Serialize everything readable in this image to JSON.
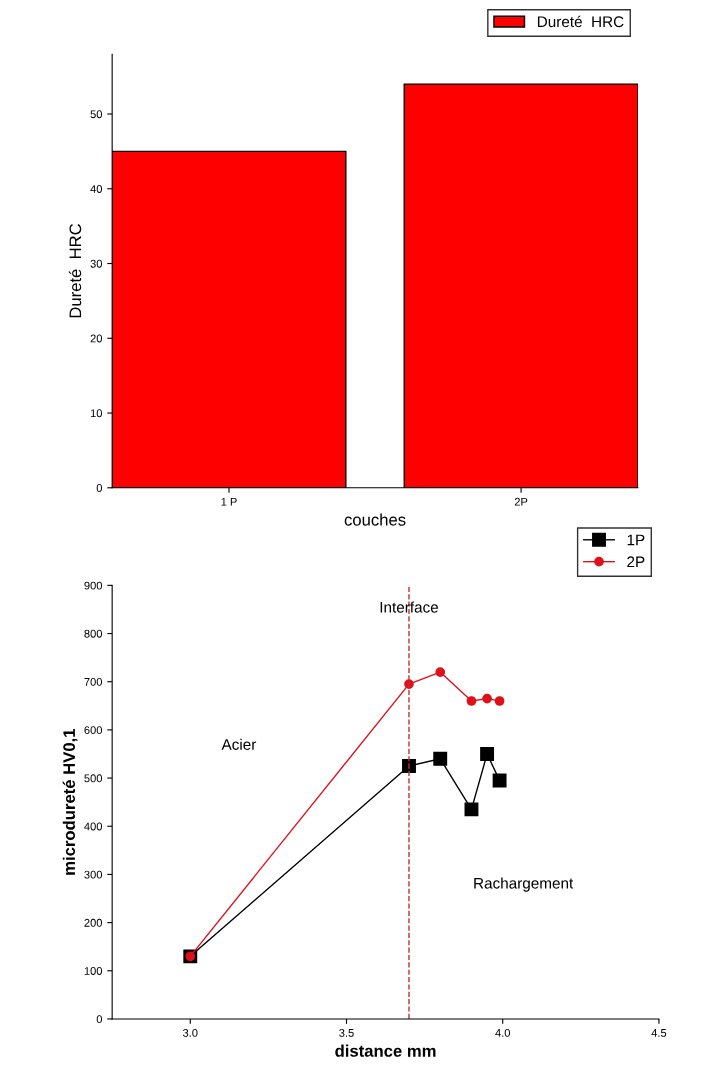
{
  "chart_data": [
    {
      "type": "bar",
      "categories": [
        "1 P",
        "2P"
      ],
      "xlabel": "couches",
      "ylabel": "Dureté  HRC",
      "ylim": [
        0,
        58
      ],
      "yticks": [
        0,
        10,
        20,
        30,
        40,
        50
      ],
      "legend": "top right",
      "grid": false,
      "series": [
        {
          "name": "Dureté  HRC",
          "color": "#ff0000",
          "values": [
            45,
            54
          ]
        }
      ]
    },
    {
      "type": "line",
      "xlabel": "distance mm",
      "ylabel": "microdureté HV0,1",
      "xlim": [
        2.75,
        4.5
      ],
      "xticks": [
        {
          "value": 3.0,
          "label": "3.0"
        },
        {
          "value": 3.5,
          "label": "3.5"
        },
        {
          "value": 4.0,
          "label": "4.0"
        },
        {
          "value": 4.5,
          "label": "4.5"
        }
      ],
      "ylim": [
        0,
        900
      ],
      "yticks": [
        0,
        100,
        200,
        300,
        400,
        500,
        600,
        700,
        800,
        900
      ],
      "legend": "top right",
      "grid": false,
      "series": [
        {
          "name": "1P",
          "color": "#000000",
          "marker": "square",
          "x": [
            3.0,
            3.7,
            3.8,
            3.9,
            3.95,
            3.99
          ],
          "values": [
            130,
            525,
            540,
            435,
            550,
            495
          ]
        },
        {
          "name": "2P",
          "color": "#e0101a",
          "marker": "circle",
          "x": [
            3.0,
            3.7,
            3.8,
            3.9,
            3.95,
            3.99
          ],
          "values": [
            130,
            695,
            720,
            660,
            665,
            660
          ]
        }
      ],
      "ref_lines": [
        {
          "axis": "x",
          "value": 3.7,
          "label": "Interface",
          "color": "#c03030",
          "line_style": "dashed"
        }
      ],
      "annotations": [
        "Acier",
        "Rachargement"
      ]
    }
  ]
}
